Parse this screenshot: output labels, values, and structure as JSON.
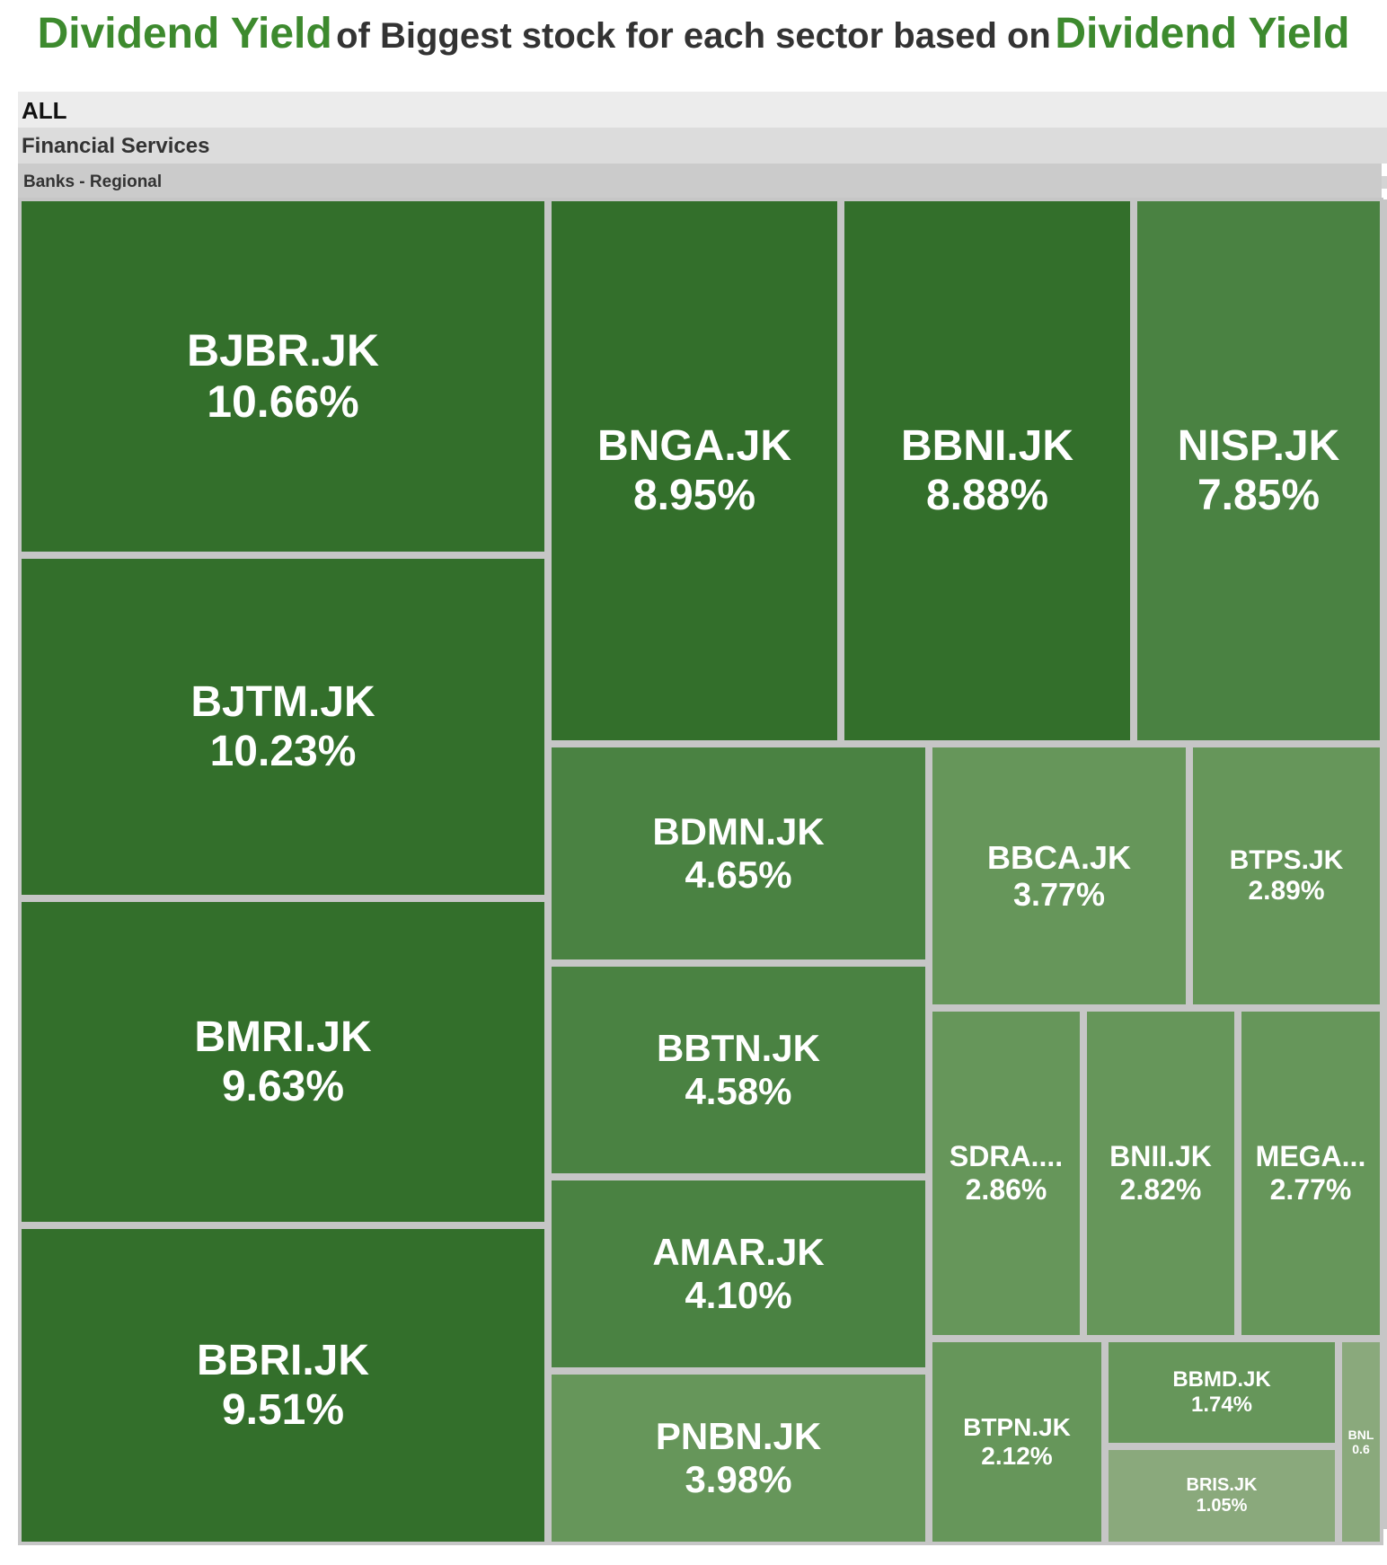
{
  "title": {
    "accent_left": "Dividend Yield",
    "middle": "of Biggest stock for each sector based on",
    "accent_right": "Dividend Yield"
  },
  "hierarchy": {
    "root": "ALL",
    "sector": "Financial Services",
    "industry": "Banks - Regional"
  },
  "colors": {
    "accent": "#3d8a2e",
    "scale": [
      "#8aa97c",
      "#66965a",
      "#4a8242",
      "#336f2b"
    ]
  },
  "chart_data": {
    "type": "treemap",
    "title": "Dividend Yield of Biggest stock for each sector based on Dividend Yield",
    "path": [
      "ALL",
      "Financial Services",
      "Banks - Regional"
    ],
    "items": [
      {
        "label": "BJBR.JK",
        "value": 10.66,
        "text": "10.66%"
      },
      {
        "label": "BJTM.JK",
        "value": 10.23,
        "text": "10.23%"
      },
      {
        "label": "BMRI.JK",
        "value": 9.63,
        "text": "9.63%"
      },
      {
        "label": "BBRI.JK",
        "value": 9.51,
        "text": "9.51%"
      },
      {
        "label": "BNGA.JK",
        "value": 8.95,
        "text": "8.95%"
      },
      {
        "label": "BBNI.JK",
        "value": 8.88,
        "text": "8.88%"
      },
      {
        "label": "NISP.JK",
        "value": 7.85,
        "text": "7.85%"
      },
      {
        "label": "BDMN.JK",
        "value": 4.65,
        "text": "4.65%"
      },
      {
        "label": "BBTN.JK",
        "value": 4.58,
        "text": "4.58%"
      },
      {
        "label": "AMAR.JK",
        "value": 4.1,
        "text": "4.10%"
      },
      {
        "label": "PNBN.JK",
        "value": 3.98,
        "text": "3.98%"
      },
      {
        "label": "BBCA.JK",
        "value": 3.77,
        "text": "3.77%"
      },
      {
        "label": "BTPS.JK",
        "value": 2.89,
        "text": "2.89%"
      },
      {
        "label": "SDRA....",
        "value": 2.86,
        "text": "2.86%"
      },
      {
        "label": "BNII.JK",
        "value": 2.82,
        "text": "2.82%"
      },
      {
        "label": "MEGA...",
        "value": 2.77,
        "text": "2.77%"
      },
      {
        "label": "BTPN.JK",
        "value": 2.12,
        "text": "2.12%"
      },
      {
        "label": "BBMD.JK",
        "value": 1.74,
        "text": "1.74%"
      },
      {
        "label": "BRIS.JK",
        "value": 1.05,
        "text": "1.05%"
      },
      {
        "label": "BNL",
        "value": 0.6,
        "text": "0.6"
      }
    ]
  }
}
